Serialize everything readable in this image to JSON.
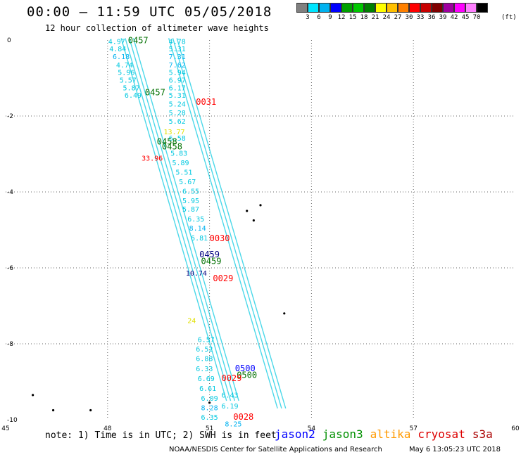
{
  "title": "00:00 – 11:59 UTC 05/05/2018",
  "subtitle": "12 hour collection of altimeter wave heights",
  "legend": {
    "colors": [
      "#808080",
      "#00e5ff",
      "#00b2f0",
      "#0000ff",
      "#00a000",
      "#00c800",
      "#008000",
      "#ffff00",
      "#ffc000",
      "#ff8000",
      "#ff0000",
      "#c80000",
      "#800000",
      "#a000a0",
      "#ff00ff",
      "#ff80ff",
      "#000000"
    ],
    "labels": [
      "3",
      "6",
      "9",
      "12",
      "15",
      "18",
      "21",
      "24",
      "27",
      "30",
      "33",
      "36",
      "39",
      "42",
      "45",
      "70"
    ],
    "unit": "(ft)"
  },
  "axes": {
    "x_ticks": [
      "45",
      "48",
      "51",
      "54",
      "57",
      "60"
    ],
    "y_ticks": [
      "0",
      "-2",
      "-4",
      "-6",
      "-8",
      "-10"
    ]
  },
  "tracks": {
    "left_start": [
      48.4,
      0.05
    ],
    "left_end": [
      51.5,
      -9.5
    ],
    "right_start": [
      49.8,
      0.05
    ],
    "right_end": [
      53.0,
      -9.7
    ]
  },
  "swh_labels": [
    {
      "t": "4.97",
      "lon": 48.02,
      "lat": -0.1,
      "c": "#00c8e0"
    },
    {
      "t": "4.84",
      "lon": 48.05,
      "lat": -0.3,
      "c": "#00c8e0"
    },
    {
      "t": "6.18",
      "lon": 48.15,
      "lat": -0.5,
      "c": "#00b2f0"
    },
    {
      "t": "4.74",
      "lon": 48.25,
      "lat": -0.72,
      "c": "#00c8e0"
    },
    {
      "t": "5.96",
      "lon": 48.3,
      "lat": -0.92,
      "c": "#00c8e0"
    },
    {
      "t": "5.57",
      "lon": 48.35,
      "lat": -1.12,
      "c": "#00c8e0"
    },
    {
      "t": "5.87",
      "lon": 48.45,
      "lat": -1.32,
      "c": "#00c8e0"
    },
    {
      "t": "6.49",
      "lon": 48.5,
      "lat": -1.52,
      "c": "#00c8e0"
    },
    {
      "t": "4.78",
      "lon": 49.8,
      "lat": -0.1,
      "c": "#00c8e0"
    },
    {
      "t": "5.31",
      "lon": 49.8,
      "lat": -0.3,
      "c": "#00c8e0"
    },
    {
      "t": "7.31",
      "lon": 49.8,
      "lat": -0.5,
      "c": "#00b2f0"
    },
    {
      "t": "7.62",
      "lon": 49.8,
      "lat": -0.72,
      "c": "#00b2f0"
    },
    {
      "t": "5.94",
      "lon": 49.8,
      "lat": -0.92,
      "c": "#00c8e0"
    },
    {
      "t": "6.97",
      "lon": 49.8,
      "lat": -1.12,
      "c": "#00c8e0"
    },
    {
      "t": "6.17",
      "lon": 49.8,
      "lat": -1.32,
      "c": "#00c8e0"
    },
    {
      "t": "5.31",
      "lon": 49.8,
      "lat": -1.52,
      "c": "#00c8e0"
    },
    {
      "t": "5.24",
      "lon": 49.8,
      "lat": -1.75,
      "c": "#00c8e0"
    },
    {
      "t": "5.28",
      "lon": 49.8,
      "lat": -1.98,
      "c": "#00c8e0"
    },
    {
      "t": "5.62",
      "lon": 49.8,
      "lat": -2.2,
      "c": "#00c8e0"
    },
    {
      "t": "6.58",
      "lon": 49.8,
      "lat": -2.65,
      "c": "#00c8e0"
    },
    {
      "t": "5.83",
      "lon": 49.85,
      "lat": -3.05,
      "c": "#00c8e0"
    },
    {
      "t": "5.89",
      "lon": 49.9,
      "lat": -3.3,
      "c": "#00c8e0"
    },
    {
      "t": "5.51",
      "lon": 50.0,
      "lat": -3.55,
      "c": "#00c8e0"
    },
    {
      "t": "5.67",
      "lon": 50.1,
      "lat": -3.8,
      "c": "#00c8e0"
    },
    {
      "t": "6.55",
      "lon": 50.2,
      "lat": -4.05,
      "c": "#00c8e0"
    },
    {
      "t": "5.95",
      "lon": 50.2,
      "lat": -4.3,
      "c": "#00c8e0"
    },
    {
      "t": "5.87",
      "lon": 50.2,
      "lat": -4.52,
      "c": "#00c8e0"
    },
    {
      "t": "6.35",
      "lon": 50.35,
      "lat": -4.78,
      "c": "#00c8e0"
    },
    {
      "t": "8.14",
      "lon": 50.4,
      "lat": -5.02,
      "c": "#00b2f0"
    },
    {
      "t": "6.81",
      "lon": 50.45,
      "lat": -5.28,
      "c": "#00c8e0"
    },
    {
      "t": "13.77",
      "lon": 49.65,
      "lat": -2.48,
      "c": "#e0e000"
    },
    {
      "t": "33.96",
      "lon": 49.0,
      "lat": -3.18,
      "c": "#ff0000"
    },
    {
      "t": "10.74",
      "lon": 50.3,
      "lat": -6.2,
      "c": "#000080"
    },
    {
      "t": "24",
      "lon": 50.35,
      "lat": -7.45,
      "c": "#e0e000"
    },
    {
      "t": "6.57",
      "lon": 50.65,
      "lat": -7.95,
      "c": "#00c8e0"
    },
    {
      "t": "6.52",
      "lon": 50.6,
      "lat": -8.2,
      "c": "#00c8e0"
    },
    {
      "t": "6.88",
      "lon": 50.6,
      "lat": -8.45,
      "c": "#00c8e0"
    },
    {
      "t": "6.33",
      "lon": 50.6,
      "lat": -8.72,
      "c": "#00c8e0"
    },
    {
      "t": "6.69",
      "lon": 50.65,
      "lat": -8.98,
      "c": "#00c8e0"
    },
    {
      "t": "6.61",
      "lon": 50.7,
      "lat": -9.24,
      "c": "#00c8e0"
    },
    {
      "t": "6.09",
      "lon": 50.75,
      "lat": -9.5,
      "c": "#00c8e0"
    },
    {
      "t": "8.28",
      "lon": 50.75,
      "lat": -9.75,
      "c": "#00b2f0"
    },
    {
      "t": "6.35",
      "lon": 50.75,
      "lat": -10.0,
      "c": "#00c8e0"
    },
    {
      "t": "6.43",
      "lon": 51.35,
      "lat": -9.42,
      "c": "#00c8e0"
    },
    {
      "t": "6.19",
      "lon": 51.35,
      "lat": -9.7,
      "c": "#00c8e0"
    },
    {
      "t": "8.25",
      "lon": 51.45,
      "lat": -10.18,
      "c": "#00b2f0"
    }
  ],
  "time_labels": [
    {
      "t": "0457",
      "lon": 48.6,
      "lat": -0.08,
      "c": "#007000"
    },
    {
      "t": "0457",
      "lon": 49.1,
      "lat": -1.45,
      "c": "#007000"
    },
    {
      "t": "0031",
      "lon": 50.6,
      "lat": -1.7,
      "c": "#ff0000"
    },
    {
      "t": "0458",
      "lon": 49.45,
      "lat": -2.75,
      "c": "#007000"
    },
    {
      "t": "0458",
      "lon": 49.6,
      "lat": -2.88,
      "c": "#007000"
    },
    {
      "t": "0030",
      "lon": 51.0,
      "lat": -5.3,
      "c": "#ff0000"
    },
    {
      "t": "0459",
      "lon": 50.7,
      "lat": -5.72,
      "c": "#000080"
    },
    {
      "t": "0459",
      "lon": 50.75,
      "lat": -5.9,
      "c": "#007000"
    },
    {
      "t": "0029",
      "lon": 51.1,
      "lat": -6.35,
      "c": "#ff0000"
    },
    {
      "t": "0500",
      "lon": 51.75,
      "lat": -8.72,
      "c": "#0000ff"
    },
    {
      "t": "0500",
      "lon": 51.8,
      "lat": -8.9,
      "c": "#007000"
    },
    {
      "t": "0029",
      "lon": 51.35,
      "lat": -8.98,
      "c": "#ff0000"
    },
    {
      "t": "0028",
      "lon": 51.7,
      "lat": -10.0,
      "c": "#ff0000"
    }
  ],
  "note": "note: 1) Time is in UTC; 2) SWH is in feet",
  "satellites": [
    {
      "name": "jason2",
      "color": "#0000ff"
    },
    {
      "name": "jason3",
      "color": "#009000"
    },
    {
      "name": "altika",
      "color": "#ff9900"
    },
    {
      "name": "cryosat",
      "color": "#dd0000"
    },
    {
      "name": "s3a",
      "color": "#aa0000"
    }
  ],
  "credit": "NOAA/NESDIS Center for Satellite Applications and Research",
  "credit_time": "May  6 13:05:23 UTC 2018"
}
